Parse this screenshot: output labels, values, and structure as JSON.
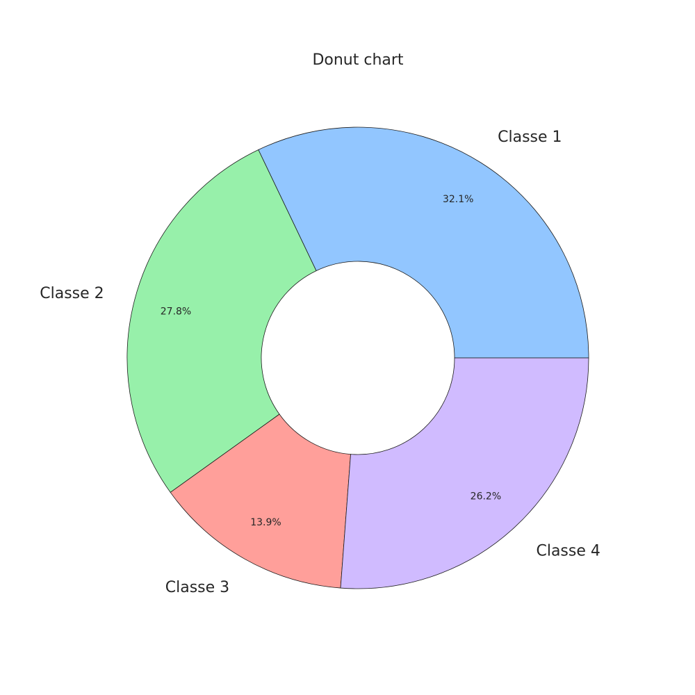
{
  "chart_data": {
    "type": "pie",
    "title": "Donut chart",
    "categories": [
      "Classe 1",
      "Classe 2",
      "Classe 3",
      "Classe 4"
    ],
    "values": [
      32.1,
      27.8,
      13.9,
      26.2
    ],
    "percent_labels": [
      "32.1%",
      "27.8%",
      "13.9%",
      "26.2%"
    ],
    "colors": [
      "#92c6ff",
      "#97f0aa",
      "#ff9f9a",
      "#d0bbff"
    ],
    "start_angle_deg": 0,
    "direction": "counterclockwise",
    "donut": true,
    "legend": "none"
  }
}
